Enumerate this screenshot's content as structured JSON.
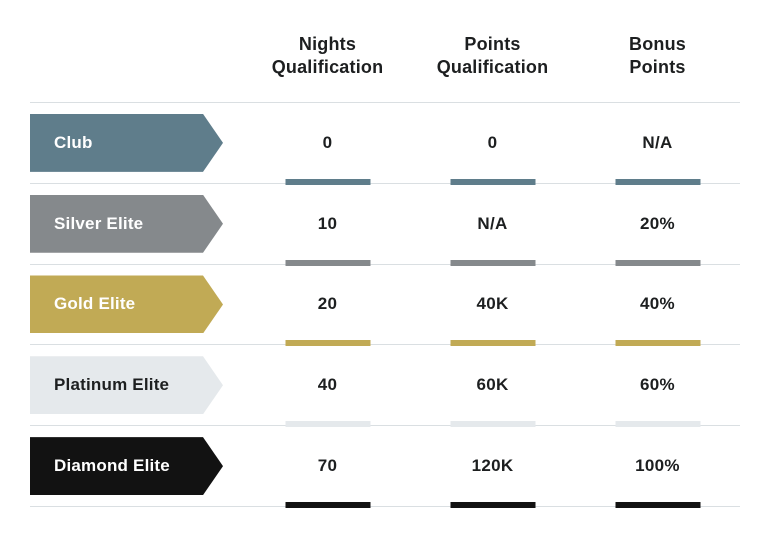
{
  "chart_data": {
    "type": "table",
    "columns": [
      "",
      "Nights Qualification",
      "Points Qualification",
      "Bonus Points"
    ],
    "rows": [
      [
        "Club",
        "0",
        "0",
        "N/A"
      ],
      [
        "Silver Elite",
        "10",
        "N/A",
        "20%"
      ],
      [
        "Gold Elite",
        "20",
        "40K",
        "40%"
      ],
      [
        "Platinum Elite",
        "40",
        "60K",
        "60%"
      ],
      [
        "Diamond Elite",
        "70",
        "120K",
        "100%"
      ]
    ]
  },
  "table": {
    "headers": [
      {
        "line1": "Nights",
        "line2": "Qualification"
      },
      {
        "line1": "Points",
        "line2": "Qualification"
      },
      {
        "line1": "Bonus",
        "line2": "Points"
      }
    ],
    "rows": [
      {
        "tier": "Club",
        "color": "#5f7d8b",
        "text_color": "#ffffff",
        "values": [
          "0",
          "0",
          "N/A"
        ]
      },
      {
        "tier": "Silver Elite",
        "color": "#85898c",
        "text_color": "#ffffff",
        "values": [
          "10",
          "N/A",
          "20%"
        ]
      },
      {
        "tier": "Gold Elite",
        "color": "#c1aa55",
        "text_color": "#ffffff",
        "values": [
          "20",
          "40K",
          "40%"
        ]
      },
      {
        "tier": "Platinum Elite",
        "color": "#e5e9ec",
        "text_color": "#1d1f20",
        "values": [
          "40",
          "60K",
          "60%"
        ]
      },
      {
        "tier": "Diamond Elite",
        "color": "#121212",
        "text_color": "#ffffff",
        "values": [
          "70",
          "120K",
          "100%"
        ]
      }
    ]
  },
  "colors": {
    "divider": "#dadfe2",
    "text": "#1d1f20",
    "background": "#ffffff"
  }
}
